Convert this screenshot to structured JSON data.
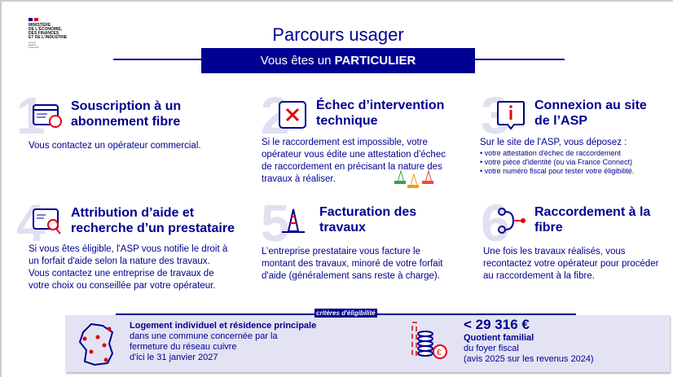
{
  "logo": {
    "text": "MINISTÈRE\nDE L'ÉCONOMIE,\nDES FINANCES\nET DE L'INDUSTRIE",
    "motto": "Liberté\nÉgalité\nFraternité",
    "colors": [
      "#000091",
      "#e1000f"
    ]
  },
  "title": "Parcours usager",
  "banner": {
    "prefix": "Vous êtes un ",
    "emphasis": "PARTICULIER"
  },
  "steps": [
    {
      "number": "1",
      "title": "Souscription à un abonnement fibre",
      "body": "Vous contactez un opérateur commercial.",
      "icon": "browser-globe-icon"
    },
    {
      "number": "2",
      "title": "Échec d’intervention technique",
      "body": "Si le raccordement est impossible, votre opérateur vous édite une attestation d'échec de raccordement en précisant la nature des travaux à réaliser.",
      "icon": "error-x-icon"
    },
    {
      "number": "3",
      "title": "Connexion au site de l’ASP",
      "body": "Sur le site de l'ASP, vous déposez :",
      "bullets": [
        "votre attestation d'échec de raccordement",
        "votre pièce d'identité (ou via France Connect)",
        "votre numéro fiscal pour tester votre éligibilité."
      ],
      "icon": "info-bubble-icon"
    },
    {
      "number": "4",
      "title": "Attribution d’aide et recherche d’un prestataire",
      "body": "Si vous êtes éligible, l'ASP vous notifie le droit à un forfait d'aide selon la nature des travaux. Vous contactez une entreprise de travaux de votre choix ou conseillée par votre opérateur.",
      "icon": "search-document-icon"
    },
    {
      "number": "5",
      "title": "Facturation des travaux",
      "body": "L’entreprise prestataire vous facture le montant des travaux, minoré de votre forfait d'aide (généralement sans reste à charge).",
      "icon": "traffic-cone-icon"
    },
    {
      "number": "6",
      "title": "Raccordement à la fibre",
      "body": "Une fois les travaux réalisés, vous recontactez votre opérateur pour procéder au raccordement à la fibre.",
      "icon": "fiber-connection-icon"
    }
  ],
  "criteria": {
    "label": "critères d'éligibilité",
    "housing": {
      "title": "Logement individuel et résidence principale",
      "lines": [
        "dans une commune concernée par la",
        "fermeture du réseau cuivre",
        "d'ici le 31 janvier 2027"
      ],
      "icon": "france-map-pins-icon"
    },
    "income": {
      "amount": "< 29 316 €",
      "title": "Quotient familial",
      "lines": [
        "du foyer fiscal",
        "(avis 2025 sur les revenus 2024)"
      ],
      "icon": "euro-coins-icon"
    }
  },
  "accent": "#000091",
  "alert": "#e1000f"
}
